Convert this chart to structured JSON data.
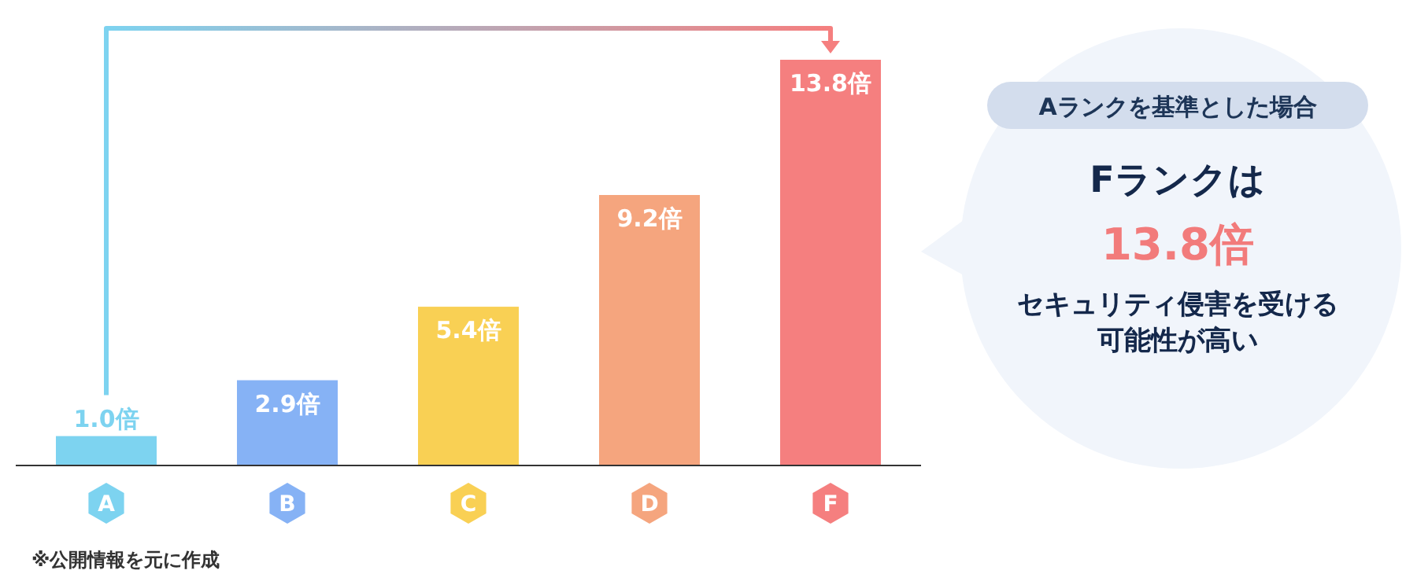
{
  "chart_data": {
    "type": "bar",
    "categories": [
      "A",
      "B",
      "C",
      "D",
      "F"
    ],
    "values": [
      1.0,
      2.9,
      5.4,
      9.2,
      13.8
    ],
    "value_labels": [
      "1.0倍",
      "2.9倍",
      "5.4倍",
      "9.2倍",
      "13.8倍"
    ],
    "colors": [
      "#7dd3f0",
      "#86b2f5",
      "#f9d054",
      "#f5a57e",
      "#f57f7f"
    ],
    "annotations": [
      "Aランクを基準とした場合",
      "Fランクは",
      "13.8倍",
      "セキュリティ侵害を受ける",
      "可能性が高い",
      "※公開情報を元に作成"
    ]
  }
}
